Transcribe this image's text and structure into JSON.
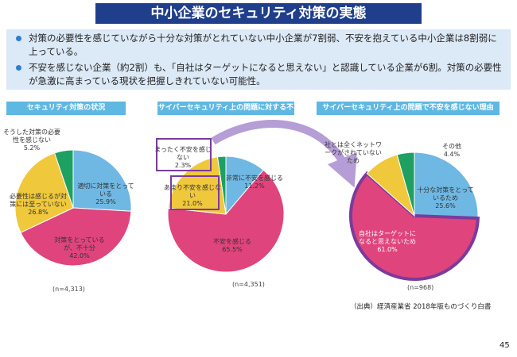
{
  "header": {
    "title": "中小企業のセキュリティ対策の実態"
  },
  "bullets": [
    "対策の必要性を感じていながら十分な対策がとれていない中小企業が7割弱、不安を抱えている中小企業は8割弱に上っている。",
    "不安を感じない企業（約2割）も、「自社はターゲットになると思えない」と認識している企業が6割。対策の必要性が急激に高まっている現状を把握しきれていない可能性。"
  ],
  "chart_data": [
    {
      "type": "pie",
      "title": "セキュリティ対策の状況",
      "note": "(n=4,313)",
      "categories": [
        "適切に対策をとっている",
        "対策をとっているが、不十分",
        "必要性は感じるが対策には至っていない",
        "そうした対策の必要性を感じない"
      ],
      "values": [
        25.9,
        42.0,
        26.8,
        5.2
      ],
      "value_labels": [
        "25.9%",
        "42.0%",
        "26.8%",
        "5.2%"
      ],
      "colors": [
        "#6fb8e3",
        "#e0447c",
        "#f0c83c",
        "#1ea062"
      ],
      "highlight": []
    },
    {
      "type": "pie",
      "title": "サイバーセキュリティ上の問題に対する不安",
      "note": "(n=4,351)",
      "categories": [
        "非常に不安を感じる",
        "不安を感じる",
        "あまり不安を感じない",
        "まったく不安を感じない"
      ],
      "values": [
        11.2,
        65.5,
        21.0,
        2.3
      ],
      "value_labels": [
        "11.2%",
        "65.5%",
        "21.0%",
        "2.3%"
      ],
      "colors": [
        "#6fb8e3",
        "#e0447c",
        "#f0c83c",
        "#1ea062"
      ],
      "highlight": [
        2,
        3
      ]
    },
    {
      "type": "pie",
      "title": "サイバーセキュリティ上の問題で不安を感じない理由",
      "note": "(n=968)",
      "categories": [
        "十分な対策をとっているため",
        "自社はターゲットになると思えないため",
        "社とは全くネットワークがされていないため",
        "その他"
      ],
      "values": [
        25.6,
        61.0,
        9.0,
        4.4
      ],
      "value_labels": [
        "25.6%",
        "61.0%",
        null,
        "4.4%"
      ],
      "colors": [
        "#6fb8e3",
        "#e0447c",
        "#f0c83c",
        "#1ea062"
      ],
      "highlight": [
        1
      ]
    }
  ],
  "source": "（出典）経済産業省 2018年版ものづくり白書",
  "page_number": "45"
}
